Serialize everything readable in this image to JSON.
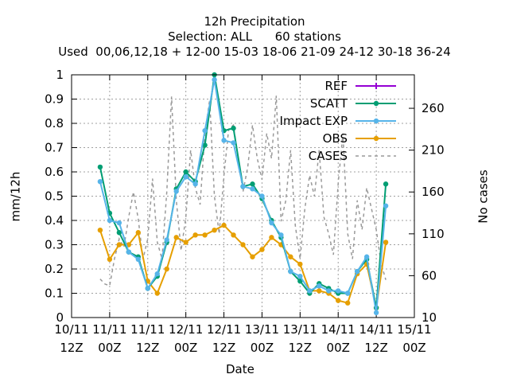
{
  "chart_data": {
    "type": "line",
    "title": "12h Precipitation",
    "subtitle": "Selection: ALL      60 stations",
    "subtitle2": "Used  00,06,12,18 + 12-00 15-03 18-06 21-09 24-12 30-18 36-24",
    "xlabel": "Date",
    "ylabel": "mm/12h",
    "y2label": "No cases",
    "xlim": [
      0,
      108
    ],
    "ylim": [
      0,
      1
    ],
    "y2lim": [
      10,
      300
    ],
    "xticks": [
      {
        "x": 0,
        "line1": "10/11",
        "line2": "12Z"
      },
      {
        "x": 12,
        "line1": "11/11",
        "line2": "00Z"
      },
      {
        "x": 24,
        "line1": "11/11",
        "line2": "12Z"
      },
      {
        "x": 36,
        "line1": "12/11",
        "line2": "00Z"
      },
      {
        "x": 48,
        "line1": "12/11",
        "line2": "12Z"
      },
      {
        "x": 60,
        "line1": "13/11",
        "line2": "00Z"
      },
      {
        "x": 72,
        "line1": "13/11",
        "line2": "12Z"
      },
      {
        "x": 84,
        "line1": "14/11",
        "line2": "00Z"
      },
      {
        "x": 96,
        "line1": "14/11",
        "line2": "12Z"
      },
      {
        "x": 108,
        "line1": "15/11",
        "line2": "00Z"
      }
    ],
    "yticks": [
      "0",
      "0.1",
      "0.2",
      "0.3",
      "0.4",
      "0.5",
      "0.6",
      "0.7",
      "0.8",
      "0.9",
      "1"
    ],
    "y2ticks": [
      "10",
      "60",
      "110",
      "160",
      "210",
      "260"
    ],
    "grid": true,
    "legend_position": "top-right",
    "series": [
      {
        "name": "REF",
        "color": "#9400d3",
        "marker": "plus",
        "x": [],
        "y": []
      },
      {
        "name": "SCATT",
        "color": "#009e73",
        "marker": "circle",
        "x": [
          9,
          12,
          15,
          18,
          21,
          24,
          27,
          30,
          33,
          36,
          39,
          42,
          45,
          48,
          51,
          54,
          57,
          60,
          63,
          66,
          69,
          72,
          75,
          78,
          81,
          84,
          87,
          90,
          93,
          96,
          99
        ],
        "y": [
          0.62,
          0.43,
          0.35,
          0.27,
          0.25,
          0.12,
          0.17,
          0.31,
          0.53,
          0.6,
          0.56,
          0.71,
          1.0,
          0.77,
          0.78,
          0.54,
          0.55,
          0.49,
          0.4,
          0.33,
          0.19,
          0.15,
          0.1,
          0.14,
          0.12,
          0.1,
          0.1,
          0.19,
          0.24,
          0.04,
          0.55
        ]
      },
      {
        "name": "Impact_EXP",
        "color": "#56b4e9",
        "marker": "circle",
        "x": [
          9,
          12,
          15,
          18,
          21,
          24,
          27,
          30,
          33,
          36,
          39,
          42,
          45,
          48,
          51,
          54,
          57,
          60,
          63,
          66,
          69,
          72,
          75,
          78,
          81,
          84,
          87,
          90,
          93,
          96,
          99
        ],
        "y": [
          0.56,
          0.4,
          0.39,
          0.27,
          0.24,
          0.12,
          0.18,
          0.32,
          0.52,
          0.58,
          0.55,
          0.77,
          0.98,
          0.73,
          0.72,
          0.54,
          0.53,
          0.5,
          0.39,
          0.34,
          0.19,
          0.17,
          0.11,
          0.13,
          0.11,
          0.11,
          0.1,
          0.19,
          0.25,
          0.02,
          0.46
        ]
      },
      {
        "name": "OBS",
        "color": "#e69f00",
        "marker": "circle",
        "x": [
          9,
          12,
          15,
          18,
          21,
          24,
          27,
          30,
          33,
          36,
          39,
          42,
          45,
          48,
          51,
          54,
          57,
          60,
          63,
          66,
          69,
          72,
          75,
          78,
          81,
          84,
          87,
          90,
          93,
          96,
          99
        ],
        "y": [
          0.36,
          0.24,
          0.3,
          0.3,
          0.35,
          0.15,
          0.1,
          0.2,
          0.33,
          0.31,
          0.34,
          0.34,
          0.36,
          0.38,
          0.34,
          0.3,
          0.25,
          0.28,
          0.33,
          0.3,
          0.25,
          0.22,
          0.11,
          0.11,
          0.1,
          0.07,
          0.06,
          0.18,
          0.22,
          0.04,
          0.31
        ]
      },
      {
        "name": "CASES",
        "color": "#999999",
        "marker": "none",
        "axis": "y2",
        "dashed": true,
        "x": [
          9,
          10.5,
          12,
          13.5,
          15,
          16.5,
          18,
          19.5,
          21,
          22.5,
          24,
          25.5,
          27,
          28.5,
          30,
          31.5,
          33,
          34.5,
          36,
          37.5,
          39,
          40.5,
          42,
          43.5,
          45,
          46.5,
          48,
          49.5,
          51,
          52.5,
          54,
          55.5,
          57,
          58.5,
          60,
          61.5,
          63,
          64.5,
          66,
          67.5,
          69,
          70.5,
          72,
          73.5,
          75,
          76.5,
          78,
          79.5,
          81,
          82.5,
          84,
          85.5,
          87,
          88.5,
          90,
          91.5,
          93,
          94.5,
          96,
          97.5,
          99
        ],
        "y": [
          56,
          50,
          48,
          80,
          104,
          94,
          130,
          160,
          128,
          80,
          104,
          176,
          100,
          80,
          160,
          274,
          150,
          90,
          130,
          210,
          165,
          145,
          230,
          270,
          155,
          110,
          180,
          235,
          240,
          200,
          160,
          190,
          240,
          200,
          175,
          230,
          200,
          275,
          125,
          150,
          210,
          120,
          80,
          140,
          180,
          155,
          210,
          130,
          110,
          85,
          170,
          230,
          110,
          80,
          150,
          115,
          165,
          140,
          115,
          75,
          55
        ]
      }
    ]
  }
}
